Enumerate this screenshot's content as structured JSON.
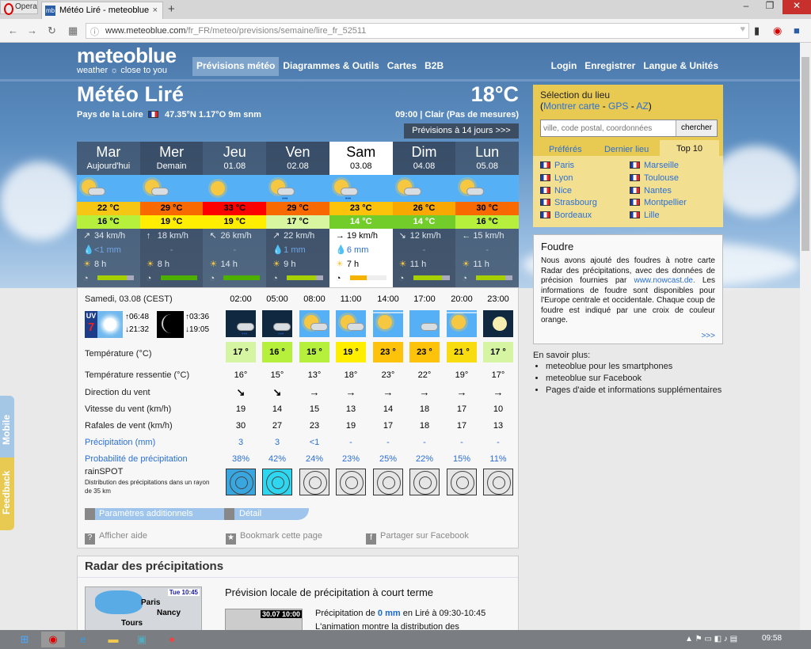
{
  "browser": {
    "opera_label": "Opera",
    "tab_title": "Météo Liré - meteoblue",
    "tab_favicon": "mb",
    "url_host": "www.meteoblue.com",
    "url_path": "/fr_FR/meteo/previsions/semaine/lire_fr_52511"
  },
  "header": {
    "logo": "meteoblue",
    "logo_sub": "weather ☼ close to you",
    "nav": [
      "Prévisions météo",
      "Diagrammes & Outils",
      "Cartes",
      "B2B"
    ],
    "nav_right": [
      "Login",
      "Enregistrer",
      "Langue & Unités"
    ],
    "title": "Météo Liré",
    "region": "Pays de la Loire",
    "coords": "47.35°N 1.17°O 9m snm",
    "current_temp": "18°C",
    "current_cond": "09:00 | Clair (Pas de mesures)",
    "forecast14_button": "Prévisions à 14 jours >>>"
  },
  "days": [
    {
      "name": "Mar",
      "sub": "Aujourd'hui",
      "icon": "sun-cloud",
      "max": "22 °C",
      "max_color": "#f6c615",
      "min": "16 °C",
      "min_color": "#b6f03c",
      "wind_dir": "↗",
      "wind": "34 km/h",
      "precip": "<1 mm",
      "sun": "8 h",
      "pred": 0.8,
      "pred_color": "#a6d000"
    },
    {
      "name": "Mer",
      "sub": "Demain",
      "icon": "sun-cloud",
      "max": "29 °C",
      "max_color": "#f86a00",
      "min": "19 °C",
      "min_color": "#ffee00",
      "wind_dir": "↑",
      "wind": "18 km/h",
      "precip": "-",
      "sun": "8 h",
      "pred": 1.0,
      "pred_color": "#4db000"
    },
    {
      "name": "Jeu",
      "sub": "01.08",
      "icon": "sun",
      "max": "33 °C",
      "max_color": "#ff0000",
      "min": "19 °C",
      "min_color": "#ffee00",
      "wind_dir": "↖",
      "wind": "26 km/h",
      "precip": "-",
      "sun": "14 h",
      "pred": 1.0,
      "pred_color": "#4db000"
    },
    {
      "name": "Ven",
      "sub": "02.08",
      "icon": "sun-cloud-rain",
      "max": "29 °C",
      "max_color": "#f86a00",
      "min": "17 °C",
      "min_color": "#d8f5a0",
      "wind_dir": "↗",
      "wind": "22 km/h",
      "precip": "1 mm",
      "sun": "9 h",
      "pred": 0.8,
      "pred_color": "#a6d000"
    },
    {
      "name": "Sam",
      "sub": "03.08",
      "icon": "sun-cloud-rain",
      "max": "23 °C",
      "max_color": "#fcc30a",
      "min": "14 °C",
      "min_color": "#72cc2a",
      "wind_dir": "→",
      "wind": "19 km/h",
      "precip": "6 mm",
      "sun": "7 h",
      "pred": 0.45,
      "pred_color": "#f5b300",
      "selected": true
    },
    {
      "name": "Dim",
      "sub": "04.08",
      "icon": "sun-cloud",
      "max": "26 °C",
      "max_color": "#f8a800",
      "min": "14 °C",
      "min_color": "#72cc2a",
      "wind_dir": "↘",
      "wind": "12 km/h",
      "precip": "-",
      "sun": "11 h",
      "pred": 0.8,
      "pred_color": "#a6d000"
    },
    {
      "name": "Lun",
      "sub": "05.08",
      "icon": "sun-cloud",
      "max": "30 °C",
      "max_color": "#f86a00",
      "min": "16 °C",
      "min_color": "#b6f03c",
      "wind_dir": "←",
      "wind": "15 km/h",
      "precip": "-",
      "sun": "11 h",
      "pred": 0.8,
      "pred_color": "#a6d000"
    }
  ],
  "hourly": {
    "date_label": "Samedi, 03.08 (CEST)",
    "uv": "7",
    "sunrise": "06:48",
    "sunset": "21:32",
    "moonrise": "03:36",
    "moonset": "19:05",
    "times": [
      "02:00",
      "05:00",
      "08:00",
      "11:00",
      "14:00",
      "17:00",
      "20:00",
      "23:00"
    ],
    "icons": [
      "night-cloud-rain",
      "night-cloud-rain",
      "sun-cloud",
      "sun-cloud",
      "sun-haze",
      "cloud",
      "sun-haze",
      "moon"
    ],
    "labels": {
      "temp": "Température (°C)",
      "feel": "Température ressentie (°C)",
      "dir": "Direction du vent",
      "speed": "Vitesse du vent (km/h)",
      "gust": "Rafales de vent (km/h)",
      "precip": "Précipitation (mm)",
      "prob": "Probabilité de précipitation",
      "rainspot": "rainSPOT",
      "rainspot_sub": "Distribution des précipitations dans un rayon de 35 km"
    },
    "temp": [
      "17 °",
      "16 °",
      "15 °",
      "19 °",
      "23 °",
      "23 °",
      "21 °",
      "17 °"
    ],
    "temp_colors": [
      "#d6f5a2",
      "#b6f03c",
      "#b6f03c",
      "#ffee00",
      "#fcc30a",
      "#fcc30a",
      "#f8dc10",
      "#d6f5a2"
    ],
    "feel": [
      "16°",
      "15°",
      "13°",
      "18°",
      "23°",
      "22°",
      "19°",
      "17°"
    ],
    "dir": [
      "↘",
      "↘",
      "→",
      "→",
      "→",
      "→",
      "→",
      "→"
    ],
    "speed": [
      "19",
      "14",
      "15",
      "13",
      "14",
      "18",
      "17",
      "10"
    ],
    "gust": [
      "30",
      "27",
      "23",
      "19",
      "17",
      "18",
      "17",
      "13"
    ],
    "precip": [
      "3",
      "3",
      "<1",
      "-",
      "-",
      "-",
      "-",
      "-"
    ],
    "prob": [
      "38%",
      "42%",
      "24%",
      "23%",
      "25%",
      "22%",
      "15%",
      "11%"
    ],
    "rainspot_colors": [
      "#3aa6e0",
      "#2fd6f0",
      "#e6e6e6",
      "#e6e6e6",
      "#e6e6e6",
      "#e6e6e6",
      "#e6e6e6",
      "#e6e6e6"
    ],
    "params_label": "Paramètres additionnels",
    "detail_label": "Détail",
    "help": "Afficher aide",
    "bookmark": "Bookmark cette page",
    "share": "Partager sur Facebook"
  },
  "radar": {
    "title": "Radar des précipitations",
    "map_time": "Tue 10:45",
    "map_cities": [
      "Paris",
      "Nancy",
      "Tours"
    ],
    "subtitle": "Prévision locale de précipitation à court terme",
    "anim_time": "30.07 10:00",
    "precip_pre": "Précipitation de ",
    "precip_value": "0 mm",
    "precip_post": " en Liré à 09:30-10:45",
    "anim_text": "L'animation montre la distribution des"
  },
  "sidebar": {
    "sel_title": "Sélection du lieu",
    "links": [
      "Montrer carte",
      "GPS",
      "AZ"
    ],
    "search_placeholder": "ville, code postal, coordonnées",
    "search_button": "chercher",
    "tabs": [
      "Préférés",
      "Dernier lieu",
      "Top 10"
    ],
    "cities": [
      "Paris",
      "Marseille",
      "Lyon",
      "Toulouse",
      "Nice",
      "Nantes",
      "Strasbourg",
      "Montpellier",
      "Bordeaux",
      "Lille"
    ],
    "foudre_title": "Foudre",
    "foudre_text_1": "Nous avons ajouté des foudres à notre carte Radar des précipitations, avec des données de précision fournies par ",
    "foudre_link": "www.nowcast.de.",
    "foudre_text_2": " Les informations de foudre sont disponibles pour l'Europe centrale et occidentale. Chaque coup de foudre est indiqué par une croix de couleur orange.",
    "foudre_more": ">>>",
    "more_title": "En savoir plus:",
    "more_links": [
      "meteoblue pour les smartphones",
      "meteoblue sur Facebook",
      "Pages d'aide et informations supplémentaires"
    ]
  },
  "side_tabs": {
    "mobile": "Mobile",
    "feedback": "Feedback"
  },
  "taskbar": {
    "clock": "09:58"
  }
}
